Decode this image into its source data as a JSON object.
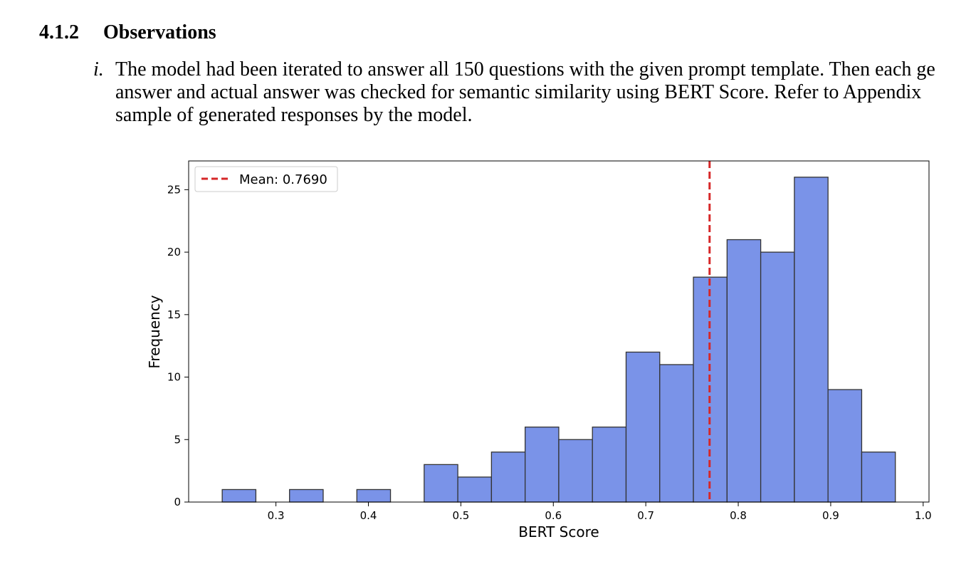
{
  "section": {
    "number": "4.1.2",
    "title": "Observations"
  },
  "list_item": {
    "marker": "i.",
    "lines": [
      "The model had been iterated to answer all 150 questions with the given prompt template. Then each ge",
      "answer and actual answer was checked for semantic similarity using BERT Score. Refer to Appendix",
      "sample of generated responses by the model."
    ]
  },
  "chart_data": {
    "type": "histogram",
    "title": "",
    "xlabel": "BERT Score",
    "ylabel": "Frequency",
    "bin_width": 0.0364,
    "bins": [
      {
        "start": 0.2419,
        "count": 1
      },
      {
        "start": 0.2783,
        "count": 0
      },
      {
        "start": 0.3147,
        "count": 1
      },
      {
        "start": 0.3511,
        "count": 0
      },
      {
        "start": 0.3875,
        "count": 1
      },
      {
        "start": 0.4239,
        "count": 0
      },
      {
        "start": 0.4603,
        "count": 3
      },
      {
        "start": 0.4967,
        "count": 2
      },
      {
        "start": 0.5331,
        "count": 4
      },
      {
        "start": 0.5695,
        "count": 6
      },
      {
        "start": 0.6059,
        "count": 5
      },
      {
        "start": 0.6423,
        "count": 6
      },
      {
        "start": 0.6787,
        "count": 12
      },
      {
        "start": 0.7151,
        "count": 11
      },
      {
        "start": 0.7515,
        "count": 18
      },
      {
        "start": 0.7879,
        "count": 21
      },
      {
        "start": 0.8243,
        "count": 20
      },
      {
        "start": 0.8607,
        "count": 26
      },
      {
        "start": 0.8971,
        "count": 9
      },
      {
        "start": 0.9335,
        "count": 4
      }
    ],
    "mean": 0.769,
    "legend": {
      "label": "Mean: 0.7690",
      "placement": "upper-left"
    },
    "xlim": [
      0.2056,
      1.0063
    ],
    "ylim": [
      0,
      27.3
    ],
    "xticks": [
      0.3,
      0.4,
      0.5,
      0.6,
      0.7,
      0.8,
      0.9,
      1.0
    ],
    "xtick_labels": [
      "0.3",
      "0.4",
      "0.5",
      "0.6",
      "0.7",
      "0.8",
      "0.9",
      "1.0"
    ],
    "yticks": [
      0,
      5,
      10,
      15,
      20,
      25
    ],
    "ytick_labels": [
      "0",
      "5",
      "10",
      "15",
      "20",
      "25"
    ],
    "grid": false,
    "colors": {
      "bar_fill": "#7a93e8",
      "bar_edge": "#333333",
      "mean_line": "#d62728"
    }
  }
}
